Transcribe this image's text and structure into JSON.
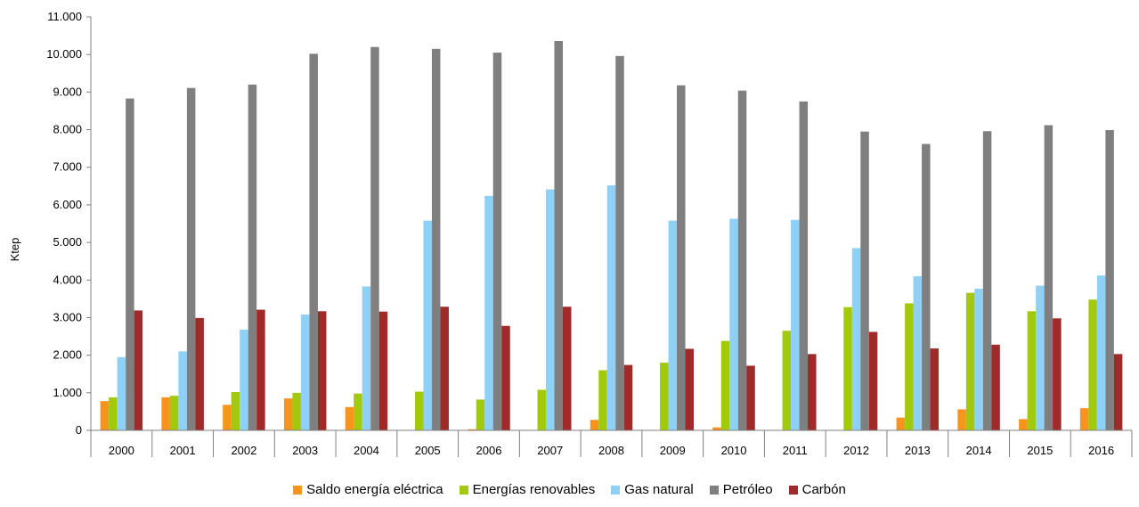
{
  "chart_data": {
    "type": "bar",
    "ylabel": "Ktep",
    "xlabel": "",
    "ylim": [
      0,
      11000
    ],
    "yticks": [
      0,
      1000,
      2000,
      3000,
      4000,
      5000,
      6000,
      7000,
      8000,
      9000,
      10000,
      11000
    ],
    "ytick_labels": [
      "0",
      "1.000",
      "2.000",
      "3.000",
      "4.000",
      "5.000",
      "6.000",
      "7.000",
      "8.000",
      "9.000",
      "10.000",
      "11.000"
    ],
    "grid": false,
    "legend_position": "bottom",
    "categories": [
      "2000",
      "2001",
      "2002",
      "2003",
      "2004",
      "2005",
      "2006",
      "2007",
      "2008",
      "2009",
      "2010",
      "2011",
      "2012",
      "2013",
      "2014",
      "2015",
      "2016"
    ],
    "series": [
      {
        "name": "Saldo energía eléctrica",
        "color": "#f7941d",
        "values": [
          780,
          880,
          680,
          850,
          620,
          0,
          30,
          0,
          280,
          0,
          80,
          0,
          0,
          340,
          560,
          300,
          590
        ]
      },
      {
        "name": "Energías renovables",
        "color": "#a3c90f",
        "values": [
          880,
          920,
          1020,
          1000,
          980,
          1030,
          820,
          1080,
          1600,
          1800,
          2380,
          2650,
          3280,
          3380,
          3660,
          3170,
          3480
        ]
      },
      {
        "name": "Gas natural",
        "color": "#8fd0f7",
        "values": [
          1950,
          2100,
          2680,
          3080,
          3830,
          5580,
          6240,
          6410,
          6520,
          5580,
          5630,
          5600,
          4850,
          4100,
          3770,
          3850,
          4120
        ]
      },
      {
        "name": "Petróleo",
        "color": "#7f7f7f",
        "values": [
          8830,
          9110,
          9200,
          10020,
          10200,
          10150,
          10050,
          10360,
          9960,
          9180,
          9040,
          8750,
          7950,
          7620,
          7960,
          8120,
          7990
        ]
      },
      {
        "name": "Carbón",
        "color": "#9e2a2a",
        "values": [
          3190,
          2990,
          3210,
          3170,
          3160,
          3290,
          2780,
          3290,
          1740,
          2170,
          1720,
          2030,
          2620,
          2180,
          2280,
          2980,
          2030
        ]
      }
    ]
  }
}
